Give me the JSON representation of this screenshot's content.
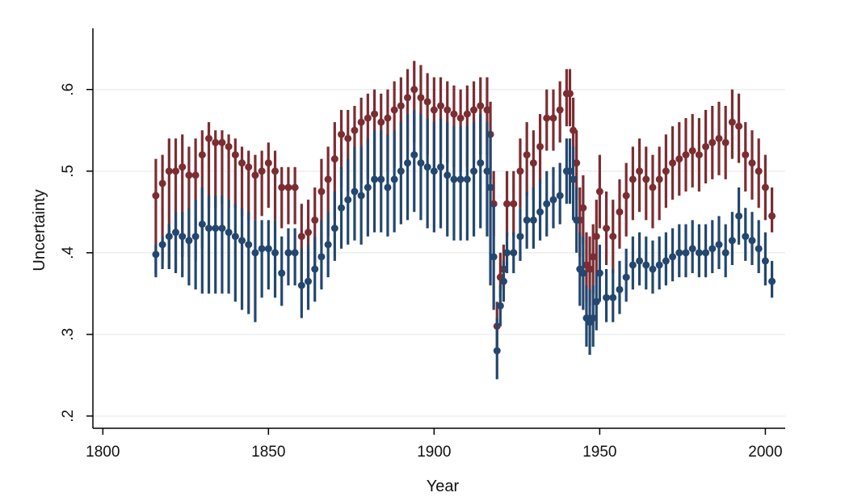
{
  "chart_data": {
    "type": "scatter",
    "subtype": "point-with-error-bars",
    "title": "",
    "xlabel": "Year",
    "ylabel": "Uncertainty",
    "xlim": [
      1797,
      2006
    ],
    "ylim": [
      0.185,
      0.675
    ],
    "xticks": [
      {
        "value": 1800,
        "label": "1800"
      },
      {
        "value": 1850,
        "label": "1850"
      },
      {
        "value": 1900,
        "label": "1900"
      },
      {
        "value": 1950,
        "label": "1950"
      },
      {
        "value": 2000,
        "label": "2000"
      }
    ],
    "yticks": [
      {
        "value": 0.2,
        "label": ".2"
      },
      {
        "value": 0.3,
        "label": ".3"
      },
      {
        "value": 0.4,
        "label": ".4"
      },
      {
        "value": 0.5,
        "label": ".5"
      },
      {
        "value": 0.6,
        "label": ".6"
      }
    ],
    "grid": "horizontal",
    "legend": "none",
    "series": [
      {
        "color": "#7b2d32",
        "x": [
          1816,
          1818,
          1820,
          1822,
          1824,
          1826,
          1828,
          1830,
          1832,
          1834,
          1836,
          1838,
          1840,
          1842,
          1844,
          1846,
          1848,
          1850,
          1852,
          1854,
          1856,
          1858,
          1860,
          1862,
          1864,
          1866,
          1868,
          1870,
          1872,
          1874,
          1876,
          1878,
          1880,
          1882,
          1884,
          1886,
          1888,
          1890,
          1892,
          1894,
          1896,
          1898,
          1900,
          1902,
          1904,
          1906,
          1908,
          1910,
          1912,
          1914,
          1916,
          1917,
          1918,
          1919,
          1920,
          1921,
          1922,
          1924,
          1926,
          1928,
          1930,
          1932,
          1934,
          1936,
          1938,
          1940,
          1941,
          1942,
          1943,
          1944,
          1945,
          1946,
          1947,
          1948,
          1949,
          1950,
          1952,
          1954,
          1956,
          1958,
          1960,
          1962,
          1964,
          1966,
          1968,
          1970,
          1972,
          1974,
          1976,
          1978,
          1980,
          1982,
          1984,
          1986,
          1988,
          1990,
          1992,
          1994,
          1996,
          1998,
          2000,
          2002
        ],
        "y": [
          0.47,
          0.485,
          0.5,
          0.5,
          0.505,
          0.495,
          0.495,
          0.52,
          0.54,
          0.535,
          0.535,
          0.53,
          0.52,
          0.51,
          0.505,
          0.495,
          0.5,
          0.51,
          0.5,
          0.48,
          0.48,
          0.48,
          0.42,
          0.425,
          0.44,
          0.475,
          0.49,
          0.515,
          0.545,
          0.54,
          0.55,
          0.56,
          0.565,
          0.57,
          0.56,
          0.565,
          0.575,
          0.58,
          0.59,
          0.6,
          0.59,
          0.585,
          0.575,
          0.58,
          0.575,
          0.57,
          0.565,
          0.57,
          0.575,
          0.58,
          0.575,
          0.545,
          0.46,
          0.31,
          0.37,
          0.38,
          0.46,
          0.46,
          0.5,
          0.52,
          0.51,
          0.53,
          0.565,
          0.565,
          0.575,
          0.595,
          0.595,
          0.55,
          0.51,
          0.44,
          0.455,
          0.385,
          0.38,
          0.395,
          0.42,
          0.475,
          0.43,
          0.42,
          0.45,
          0.47,
          0.49,
          0.5,
          0.49,
          0.48,
          0.49,
          0.5,
          0.51,
          0.515,
          0.52,
          0.525,
          0.52,
          0.53,
          0.535,
          0.54,
          0.535,
          0.56,
          0.555,
          0.52,
          0.51,
          0.5,
          0.48,
          0.445
        ],
        "err_low": [
          0.375,
          0.39,
          0.38,
          0.38,
          0.395,
          0.395,
          0.39,
          0.405,
          0.455,
          0.455,
          0.46,
          0.455,
          0.455,
          0.445,
          0.44,
          0.44,
          0.445,
          0.455,
          0.44,
          0.43,
          0.435,
          0.435,
          0.365,
          0.37,
          0.38,
          0.41,
          0.42,
          0.44,
          0.48,
          0.475,
          0.48,
          0.485,
          0.49,
          0.495,
          0.49,
          0.5,
          0.505,
          0.51,
          0.525,
          0.535,
          0.53,
          0.52,
          0.505,
          0.515,
          0.51,
          0.505,
          0.5,
          0.505,
          0.51,
          0.52,
          0.52,
          0.49,
          0.42,
          0.285,
          0.345,
          0.355,
          0.42,
          0.42,
          0.455,
          0.47,
          0.465,
          0.485,
          0.525,
          0.525,
          0.535,
          0.555,
          0.555,
          0.505,
          0.465,
          0.395,
          0.41,
          0.34,
          0.335,
          0.35,
          0.375,
          0.43,
          0.385,
          0.375,
          0.405,
          0.42,
          0.44,
          0.45,
          0.44,
          0.43,
          0.44,
          0.455,
          0.465,
          0.47,
          0.475,
          0.48,
          0.475,
          0.485,
          0.49,
          0.495,
          0.49,
          0.515,
          0.51,
          0.475,
          0.465,
          0.455,
          0.44,
          0.425
        ],
        "err_high": [
          0.515,
          0.52,
          0.54,
          0.54,
          0.545,
          0.53,
          0.54,
          0.55,
          0.56,
          0.55,
          0.55,
          0.545,
          0.54,
          0.53,
          0.525,
          0.52,
          0.525,
          0.535,
          0.525,
          0.505,
          0.505,
          0.505,
          0.46,
          0.465,
          0.48,
          0.515,
          0.53,
          0.56,
          0.575,
          0.575,
          0.58,
          0.59,
          0.595,
          0.6,
          0.595,
          0.6,
          0.61,
          0.615,
          0.625,
          0.635,
          0.63,
          0.62,
          0.615,
          0.615,
          0.61,
          0.605,
          0.6,
          0.605,
          0.61,
          0.615,
          0.615,
          0.585,
          0.5,
          0.34,
          0.4,
          0.41,
          0.5,
          0.5,
          0.54,
          0.56,
          0.55,
          0.57,
          0.6,
          0.6,
          0.61,
          0.625,
          0.625,
          0.59,
          0.55,
          0.48,
          0.495,
          0.425,
          0.42,
          0.435,
          0.465,
          0.52,
          0.475,
          0.465,
          0.49,
          0.51,
          0.53,
          0.54,
          0.53,
          0.52,
          0.53,
          0.545,
          0.555,
          0.56,
          0.565,
          0.57,
          0.565,
          0.575,
          0.58,
          0.585,
          0.58,
          0.6,
          0.595,
          0.56,
          0.55,
          0.54,
          0.52,
          0.48
        ]
      },
      {
        "color": "#23476f",
        "x": [
          1816,
          1818,
          1820,
          1822,
          1824,
          1826,
          1828,
          1830,
          1832,
          1834,
          1836,
          1838,
          1840,
          1842,
          1844,
          1846,
          1848,
          1850,
          1852,
          1854,
          1856,
          1858,
          1860,
          1862,
          1864,
          1866,
          1868,
          1870,
          1872,
          1874,
          1876,
          1878,
          1880,
          1882,
          1884,
          1886,
          1888,
          1890,
          1892,
          1894,
          1896,
          1898,
          1900,
          1902,
          1904,
          1906,
          1908,
          1910,
          1912,
          1914,
          1916,
          1917,
          1918,
          1919,
          1920,
          1921,
          1922,
          1924,
          1926,
          1928,
          1930,
          1932,
          1934,
          1936,
          1938,
          1940,
          1941,
          1942,
          1943,
          1944,
          1945,
          1946,
          1947,
          1948,
          1949,
          1950,
          1952,
          1954,
          1956,
          1958,
          1960,
          1962,
          1964,
          1966,
          1968,
          1970,
          1972,
          1974,
          1976,
          1978,
          1980,
          1982,
          1984,
          1986,
          1988,
          1990,
          1992,
          1994,
          1996,
          1998,
          2000,
          2002
        ],
        "y": [
          0.398,
          0.41,
          0.42,
          0.425,
          0.42,
          0.415,
          0.42,
          0.435,
          0.43,
          0.43,
          0.43,
          0.425,
          0.42,
          0.415,
          0.41,
          0.4,
          0.405,
          0.405,
          0.4,
          0.375,
          0.4,
          0.4,
          0.36,
          0.365,
          0.38,
          0.395,
          0.41,
          0.43,
          0.455,
          0.465,
          0.475,
          0.47,
          0.48,
          0.49,
          0.49,
          0.48,
          0.49,
          0.5,
          0.51,
          0.52,
          0.51,
          0.505,
          0.5,
          0.505,
          0.495,
          0.49,
          0.49,
          0.49,
          0.5,
          0.51,
          0.5,
          0.48,
          0.395,
          0.28,
          0.335,
          0.365,
          0.4,
          0.4,
          0.42,
          0.44,
          0.44,
          0.45,
          0.46,
          0.465,
          0.47,
          0.5,
          0.5,
          0.49,
          0.44,
          0.38,
          0.375,
          0.32,
          0.315,
          0.32,
          0.34,
          0.375,
          0.345,
          0.345,
          0.355,
          0.37,
          0.385,
          0.39,
          0.385,
          0.38,
          0.385,
          0.39,
          0.395,
          0.4,
          0.4,
          0.405,
          0.4,
          0.4,
          0.405,
          0.41,
          0.4,
          0.415,
          0.445,
          0.42,
          0.415,
          0.405,
          0.39,
          0.365
        ],
        "err_low": [
          0.37,
          0.38,
          0.38,
          0.375,
          0.37,
          0.36,
          0.355,
          0.35,
          0.35,
          0.35,
          0.35,
          0.35,
          0.34,
          0.33,
          0.325,
          0.315,
          0.345,
          0.355,
          0.345,
          0.335,
          0.36,
          0.36,
          0.32,
          0.33,
          0.34,
          0.355,
          0.37,
          0.39,
          0.405,
          0.41,
          0.415,
          0.41,
          0.42,
          0.425,
          0.425,
          0.42,
          0.425,
          0.435,
          0.44,
          0.45,
          0.44,
          0.43,
          0.425,
          0.43,
          0.42,
          0.415,
          0.415,
          0.415,
          0.42,
          0.43,
          0.42,
          0.36,
          0.33,
          0.245,
          0.31,
          0.34,
          0.375,
          0.375,
          0.39,
          0.405,
          0.405,
          0.415,
          0.42,
          0.43,
          0.435,
          0.46,
          0.46,
          0.44,
          0.4,
          0.335,
          0.33,
          0.285,
          0.275,
          0.285,
          0.305,
          0.34,
          0.315,
          0.315,
          0.325,
          0.34,
          0.355,
          0.36,
          0.355,
          0.35,
          0.355,
          0.36,
          0.365,
          0.37,
          0.37,
          0.375,
          0.37,
          0.37,
          0.375,
          0.38,
          0.37,
          0.385,
          0.41,
          0.39,
          0.385,
          0.375,
          0.36,
          0.345
        ],
        "err_high": [
          0.41,
          0.42,
          0.435,
          0.45,
          0.45,
          0.455,
          0.465,
          0.48,
          0.47,
          0.47,
          0.47,
          0.465,
          0.46,
          0.455,
          0.45,
          0.44,
          0.44,
          0.44,
          0.44,
          0.42,
          0.43,
          0.43,
          0.405,
          0.41,
          0.42,
          0.44,
          0.45,
          0.475,
          0.505,
          0.515,
          0.53,
          0.53,
          0.54,
          0.55,
          0.55,
          0.545,
          0.55,
          0.56,
          0.57,
          0.575,
          0.57,
          0.565,
          0.56,
          0.565,
          0.56,
          0.555,
          0.555,
          0.555,
          0.56,
          0.57,
          0.56,
          0.55,
          0.46,
          0.32,
          0.36,
          0.39,
          0.425,
          0.425,
          0.455,
          0.475,
          0.48,
          0.49,
          0.5,
          0.505,
          0.51,
          0.54,
          0.54,
          0.53,
          0.48,
          0.425,
          0.42,
          0.36,
          0.355,
          0.36,
          0.375,
          0.41,
          0.38,
          0.38,
          0.39,
          0.405,
          0.42,
          0.425,
          0.42,
          0.415,
          0.42,
          0.425,
          0.43,
          0.435,
          0.435,
          0.44,
          0.435,
          0.435,
          0.44,
          0.445,
          0.435,
          0.45,
          0.48,
          0.455,
          0.45,
          0.44,
          0.425,
          0.39
        ]
      }
    ]
  }
}
